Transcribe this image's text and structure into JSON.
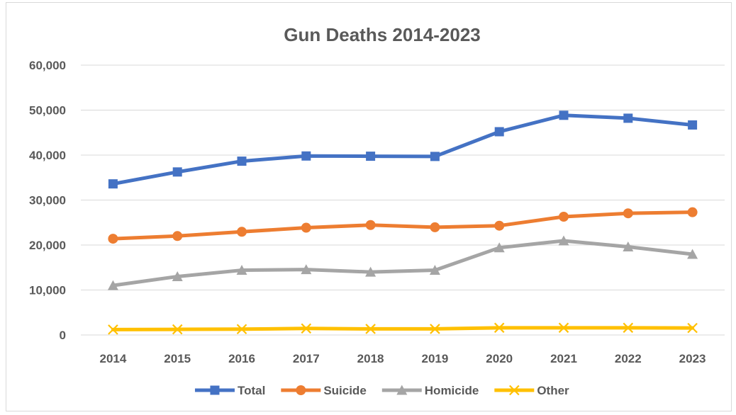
{
  "chart_data": {
    "type": "line",
    "title": "Gun Deaths 2014-2023",
    "xlabel": "",
    "ylabel": "",
    "categories": [
      "2014",
      "2015",
      "2016",
      "2017",
      "2018",
      "2019",
      "2020",
      "2021",
      "2022",
      "2023"
    ],
    "ylim": [
      0,
      60000
    ],
    "yticks": [
      0,
      10000,
      20000,
      30000,
      40000,
      50000,
      60000
    ],
    "ytick_labels": [
      "0",
      "10,000",
      "20,000",
      "30,000",
      "40,000",
      "50,000",
      "60,000"
    ],
    "grid": true,
    "legend_position": "bottom",
    "series": [
      {
        "name": "Total",
        "color": "#4472c4",
        "marker": "square",
        "values": [
          33600,
          36250,
          38650,
          39800,
          39750,
          39700,
          45200,
          48850,
          48200,
          46700
        ]
      },
      {
        "name": "Suicide",
        "color": "#ed7d31",
        "marker": "circle",
        "values": [
          21400,
          22000,
          22950,
          23850,
          24450,
          23950,
          24300,
          26300,
          27050,
          27300
        ]
      },
      {
        "name": "Homicide",
        "color": "#a5a5a5",
        "marker": "triangle",
        "values": [
          11000,
          13000,
          14400,
          14550,
          14000,
          14400,
          19400,
          20950,
          19600,
          17950
        ]
      },
      {
        "name": "Other",
        "color": "#ffc000",
        "marker": "x",
        "values": [
          1200,
          1250,
          1300,
          1450,
          1350,
          1350,
          1600,
          1600,
          1600,
          1550
        ]
      }
    ]
  }
}
